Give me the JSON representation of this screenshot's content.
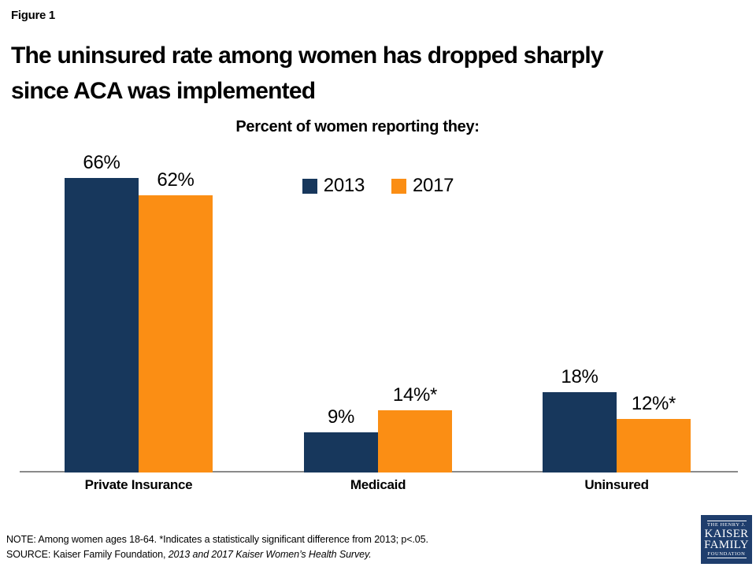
{
  "figure_label": "Figure 1",
  "title": {
    "line1": "The uninsured rate among women has dropped sharply",
    "line2": "since ACA was implemented"
  },
  "chart_data": {
    "type": "bar",
    "title": "Percent of women reporting they:",
    "categories": [
      "Private Insurance",
      "Medicaid",
      "Uninsured"
    ],
    "series": [
      {
        "name": "2013",
        "color": "#17375C",
        "values": [
          66,
          9,
          18
        ],
        "data_labels": [
          "66%",
          "9%",
          "18%"
        ]
      },
      {
        "name": "2017",
        "color": "#FB8E14",
        "values": [
          62,
          14,
          12
        ],
        "data_labels": [
          "62%",
          "14%*",
          "12%*"
        ]
      }
    ],
    "ylim": [
      0,
      70
    ],
    "y_axis_visible": false,
    "gridlines": false,
    "legend_position": "top-center",
    "axis_line_color": "#8A8A8A"
  },
  "footer": {
    "note_line": "NOTE: Among women ages 18-64. *Indicates a statistically significant difference from 2013; p<.05.",
    "source_normal": "SOURCE: Kaiser Family Foundation, ",
    "source_italic": "2013 and 2017 Kaiser Women’s Health Survey."
  },
  "logo": {
    "line1": "THE HENRY J.",
    "line2": "KAISER",
    "line3": "FAMILY",
    "line4": "FOUNDATION",
    "bg_color": "#1F3E6D"
  }
}
